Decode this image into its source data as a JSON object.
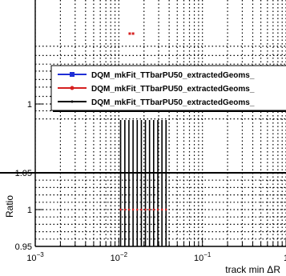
{
  "chart_data": [
    {
      "panel": "main",
      "type": "line",
      "xscale": "log",
      "yscale": "log",
      "xlim": [
        0.001,
        1
      ],
      "grid": true,
      "y_tick_labels": [
        "1"
      ],
      "series_visible_points": [
        {
          "x": 0.0135,
          "y": 4.0
        },
        {
          "x": 0.0148,
          "y": 4.0
        }
      ],
      "legend": {
        "placement": "top-right",
        "entries": [
          {
            "name": "DQM_mkFit_TTbarPU50_extractedGeoms_",
            "color": "#1f2fd6",
            "marker": "square"
          },
          {
            "name": "DQM_mkFit_TTbarPU50_extractedGeoms_",
            "color": "#d61f1f",
            "marker": "circle"
          },
          {
            "name": "DQM_mkFit_TTbarPU50_extractedGeoms_",
            "color": "#000000",
            "marker": "dot"
          }
        ]
      }
    },
    {
      "panel": "ratio",
      "type": "line",
      "xscale": "log",
      "xlim": [
        0.001,
        1
      ],
      "ylim": [
        0.95,
        1.05
      ],
      "ylabel": "Ratio",
      "xlabel": "track min ΔR",
      "grid": true,
      "y_tick_labels": [
        "0.95",
        "1",
        "1.05"
      ],
      "x_tick_labels": [
        {
          "base": "10",
          "exp": "−3"
        },
        {
          "base": "10",
          "exp": "−2"
        },
        {
          "base": "10",
          "exp": "−1"
        },
        {
          "base": "1",
          "exp": ""
        }
      ],
      "reference_value": 1.0,
      "ratio_points_x": [
        0.0105,
        0.0118,
        0.0132,
        0.0148,
        0.0166,
        0.0186,
        0.0208,
        0.0233,
        0.0261,
        0.0293,
        0.0328,
        0.0367
      ]
    }
  ],
  "colors": {
    "series_blue": "#1f2fd6",
    "series_red": "#d61f1f",
    "series_black": "#000000"
  }
}
